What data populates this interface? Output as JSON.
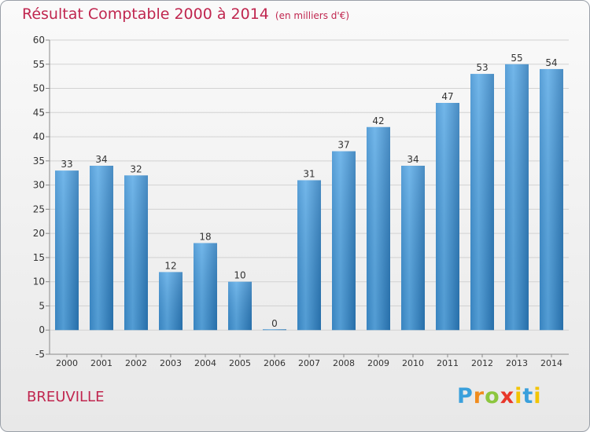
{
  "title": "Résultat Comptable 2000 à 2014",
  "subtitle": "(en milliers d'€)",
  "commune": "BREUVILLE",
  "logo": {
    "p": "P",
    "r": "r",
    "o": "o",
    "x": "x",
    "i": "i",
    "t": "t",
    "i2": "i"
  },
  "colors": {
    "title": "#c0264f",
    "bar_light": "#5aaae6",
    "bar_dark": "#2a78b8"
  },
  "chart_data": {
    "type": "bar",
    "title": "Résultat Comptable 2000 à 2014",
    "subtitle": "(en milliers d'€)",
    "categories": [
      "2000",
      "2001",
      "2002",
      "2003",
      "2004",
      "2005",
      "2006",
      "2007",
      "2008",
      "2009",
      "2010",
      "2011",
      "2012",
      "2013",
      "2014"
    ],
    "values": [
      33,
      34,
      32,
      12,
      18,
      10,
      0,
      31,
      37,
      42,
      34,
      47,
      53,
      55,
      54
    ],
    "ylim": [
      -5,
      60
    ],
    "yticks": [
      -5,
      0,
      5,
      10,
      15,
      20,
      25,
      30,
      35,
      40,
      45,
      50,
      55,
      60
    ],
    "grid": true,
    "data_labels": true
  }
}
